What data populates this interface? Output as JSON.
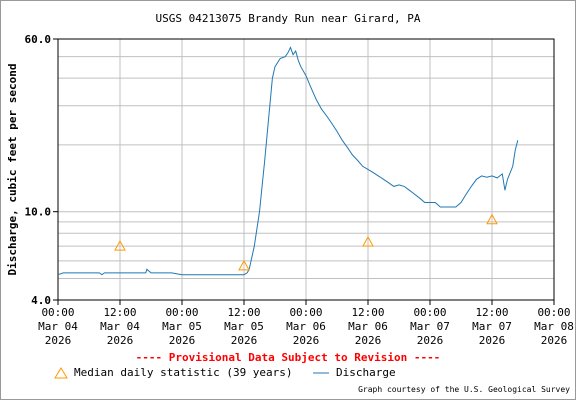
{
  "page": {
    "title": "USGS 04213075 Brandy Run near Girard, PA",
    "provisional": "---- Provisional Data Subject to Revision ----",
    "legend": {
      "median": "Median daily statistic (39 years)",
      "discharge": "Discharge"
    },
    "courtesy": "Graph courtesy of the U.S. Geological Survey"
  },
  "colors": {
    "discharge": "#1f78b4",
    "median": "#ff9900",
    "grid": "#c0c0c0",
    "provisional": "#ff0000"
  },
  "icons": {
    "median_marker": "triangle-outline",
    "discharge_marker": "line"
  },
  "chart_data": {
    "type": "line",
    "title": "USGS 04213075 Brandy Run near Girard, PA",
    "xlabel": "",
    "ylabel": "Discharge, cubic feet per second",
    "yscale": "log",
    "ylim": [
      4.0,
      60.0
    ],
    "y_labeled_ticks": [
      {
        "label": "4.0",
        "value": 4.0
      },
      {
        "label": "10.0",
        "value": 10.0
      },
      {
        "label": "60.0",
        "value": 60.0
      }
    ],
    "y_minor_ticks": [
      5,
      6,
      7,
      8,
      9,
      20,
      30,
      40,
      50
    ],
    "xlim_hours": [
      0,
      96
    ],
    "x_ticks": [
      {
        "hour": 0,
        "lines": [
          "00:00",
          "Mar 04",
          "2026"
        ]
      },
      {
        "hour": 12,
        "lines": [
          "12:00",
          "Mar 04",
          "2026"
        ]
      },
      {
        "hour": 24,
        "lines": [
          "00:00",
          "Mar 05",
          "2026"
        ]
      },
      {
        "hour": 36,
        "lines": [
          "12:00",
          "Mar 05",
          "2026"
        ]
      },
      {
        "hour": 48,
        "lines": [
          "00:00",
          "Mar 06",
          "2026"
        ]
      },
      {
        "hour": 60,
        "lines": [
          "12:00",
          "Mar 06",
          "2026"
        ]
      },
      {
        "hour": 72,
        "lines": [
          "00:00",
          "Mar 07",
          "2026"
        ]
      },
      {
        "hour": 84,
        "lines": [
          "12:00",
          "Mar 07",
          "2026"
        ]
      },
      {
        "hour": 96,
        "lines": [
          "00:00",
          "Mar 08",
          "2026"
        ]
      }
    ],
    "grid": true,
    "legend_position": "bottom",
    "series": [
      {
        "name": "Discharge",
        "hours": [
          0,
          1,
          5,
          8,
          8.5,
          9,
          12,
          16,
          17,
          17.2,
          18,
          22,
          24,
          30,
          36,
          36.6,
          37,
          38,
          39,
          40,
          41,
          41.5,
          42,
          43,
          44,
          44.5,
          45,
          45.5,
          46,
          46.5,
          47,
          48,
          49,
          50,
          51,
          52,
          53,
          54,
          55,
          56,
          57,
          58,
          59,
          60,
          61,
          62,
          63,
          64,
          65,
          66,
          67,
          68,
          69,
          70,
          71,
          72,
          73,
          74,
          75,
          76,
          77,
          78,
          79,
          80,
          81,
          82,
          83,
          84,
          85,
          86,
          86.5,
          87,
          88,
          88.5,
          89
        ],
        "values": [
          5.2,
          5.3,
          5.3,
          5.3,
          5.2,
          5.3,
          5.3,
          5.3,
          5.3,
          5.5,
          5.3,
          5.3,
          5.2,
          5.2,
          5.2,
          5.3,
          5.5,
          7,
          10,
          17,
          30,
          40,
          45,
          49,
          50,
          52,
          55,
          51,
          53,
          48,
          45,
          41,
          36,
          32,
          29,
          27,
          25,
          23,
          21,
          19.5,
          18,
          17,
          16,
          15.5,
          15,
          14.5,
          14,
          13.5,
          13,
          13.2,
          13,
          12.5,
          12,
          11.5,
          11,
          11,
          11,
          10.5,
          10.5,
          10.5,
          10.5,
          11,
          12,
          13,
          14,
          14.5,
          14.3,
          14.5,
          14.2,
          14.8,
          12.5,
          14,
          16,
          19,
          21
        ]
      },
      {
        "name": "Median daily statistic (39 years)",
        "hours": [
          12,
          36,
          60,
          84
        ],
        "values": [
          7.0,
          5.7,
          7.3,
          9.2
        ]
      }
    ]
  }
}
